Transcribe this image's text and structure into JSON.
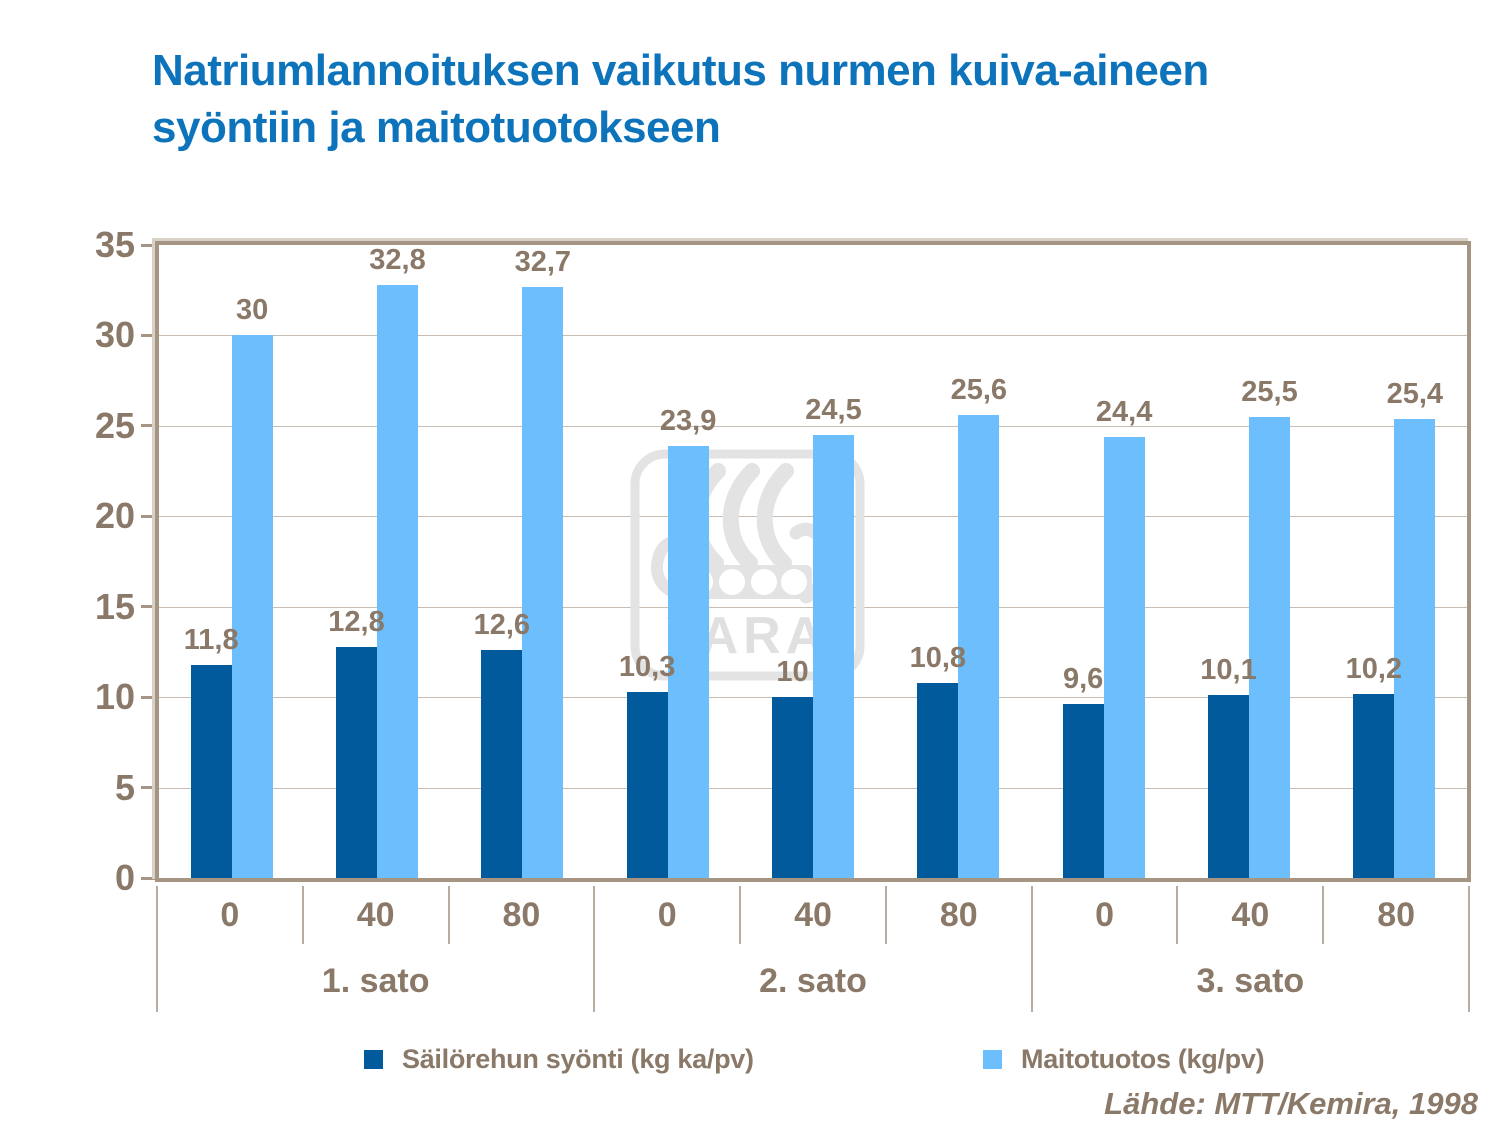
{
  "slide": {
    "title_line1": "Natriumlannoituksen vaikutus nurmen kuiva-aineen",
    "title_line2": "syöntiin ja maitotuotokseen",
    "source": "Lähde: MTT/Kemira, 1998",
    "watermark_text": "YARA"
  },
  "colors": {
    "title": "#0D73BB",
    "text": "#8A7968",
    "series_dark": "#005A9B",
    "series_light": "#6CBFFC"
  },
  "chart_data": {
    "type": "bar",
    "title": "Natriumlannoituksen vaikutus nurmen kuiva-aineen syöntiin ja maitotuotokseen",
    "xlabel": "",
    "ylabel": "",
    "ylim": [
      0,
      35
    ],
    "yticks": [
      0,
      5,
      10,
      15,
      20,
      25,
      30,
      35
    ],
    "grid": "horizontal",
    "legend_position": "bottom",
    "groups": [
      {
        "label": "1. sato",
        "categories": [
          "0",
          "40",
          "80"
        ]
      },
      {
        "label": "2. sato",
        "categories": [
          "0",
          "40",
          "80"
        ]
      },
      {
        "label": "3. sato",
        "categories": [
          "0",
          "40",
          "80"
        ]
      }
    ],
    "series": [
      {
        "name": "Säilörehun syönti (kg ka/pv)",
        "color": "#005A9B",
        "values": [
          11.8,
          12.8,
          12.6,
          10.3,
          10,
          10.8,
          9.6,
          10.1,
          10.2
        ],
        "labels": [
          "11,8",
          "12,8",
          "12,6",
          "10,3",
          "10",
          "10,8",
          "9,6",
          "10,1",
          "10,2"
        ]
      },
      {
        "name": "Maitotuotos (kg/pv)",
        "color": "#6CBFFC",
        "values": [
          30,
          32.8,
          32.7,
          23.9,
          24.5,
          25.6,
          24.4,
          25.5,
          25.4
        ],
        "labels": [
          "30",
          "32,8",
          "32,7",
          "23,9",
          "24,5",
          "25,6",
          "24,4",
          "25,5",
          "25,4"
        ]
      }
    ],
    "source": "Lähde: MTT/Kemira, 1998"
  }
}
